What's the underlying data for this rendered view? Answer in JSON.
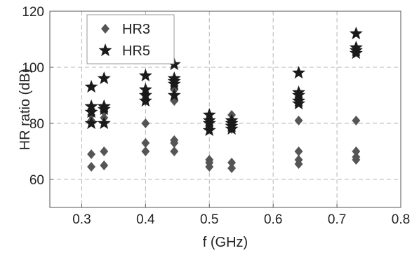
{
  "chart_data": {
    "type": "scatter",
    "title": "",
    "xlabel": "f (GHz)",
    "ylabel": "HR ratio (dB)",
    "xlim": [
      0.25,
      0.8
    ],
    "ylim": [
      50,
      120
    ],
    "xticks": [
      0.3,
      0.4,
      0.5,
      0.6,
      0.7,
      0.8
    ],
    "xtick_labels": [
      "0.3",
      "0.4",
      "0.5",
      "0.6",
      "0.7",
      "0.8"
    ],
    "yticks": [
      60,
      80,
      100,
      120
    ],
    "ytick_labels": [
      "60",
      "80",
      "100",
      "120"
    ],
    "grid": "dashed",
    "legend": "top-left",
    "series": [
      {
        "name": "HR3",
        "marker": "diamond",
        "color": "#555555",
        "x": [
          0.315,
          0.315,
          0.315,
          0.315,
          0.315,
          0.335,
          0.335,
          0.335,
          0.335,
          0.335,
          0.4,
          0.4,
          0.4,
          0.4,
          0.4,
          0.445,
          0.445,
          0.445,
          0.445,
          0.445,
          0.5,
          0.5,
          0.5,
          0.5,
          0.535,
          0.535,
          0.535,
          0.535,
          0.535,
          0.64,
          0.64,
          0.64,
          0.64,
          0.64,
          0.73,
          0.73,
          0.73,
          0.73
        ],
        "y": [
          64.5,
          69,
          81,
          83,
          85,
          65,
          70,
          82,
          84,
          85,
          70,
          73,
          80,
          88,
          90,
          70,
          73,
          74,
          88,
          92,
          64.5,
          66,
          67,
          79,
          64,
          66,
          78,
          81,
          83,
          65.5,
          67,
          70,
          81,
          89,
          67,
          68,
          70,
          81
        ]
      },
      {
        "name": "HR5",
        "marker": "star",
        "color": "#1a1a1a",
        "x": [
          0.315,
          0.315,
          0.315,
          0.315,
          0.315,
          0.335,
          0.335,
          0.335,
          0.335,
          0.335,
          0.4,
          0.4,
          0.4,
          0.4,
          0.445,
          0.445,
          0.445,
          0.445,
          0.445,
          0.5,
          0.5,
          0.5,
          0.5,
          0.535,
          0.535,
          0.535,
          0.535,
          0.64,
          0.64,
          0.64,
          0.64,
          0.64,
          0.73,
          0.73,
          0.73,
          0.73
        ],
        "y": [
          80,
          84,
          86,
          86,
          93,
          80,
          85,
          86,
          86,
          96,
          88,
          90,
          92,
          97,
          90,
          94,
          95,
          96,
          101,
          77.5,
          80,
          81,
          83,
          78,
          79,
          80,
          81,
          87,
          88,
          90,
          91,
          98,
          105,
          106,
          107,
          112
        ]
      }
    ]
  }
}
